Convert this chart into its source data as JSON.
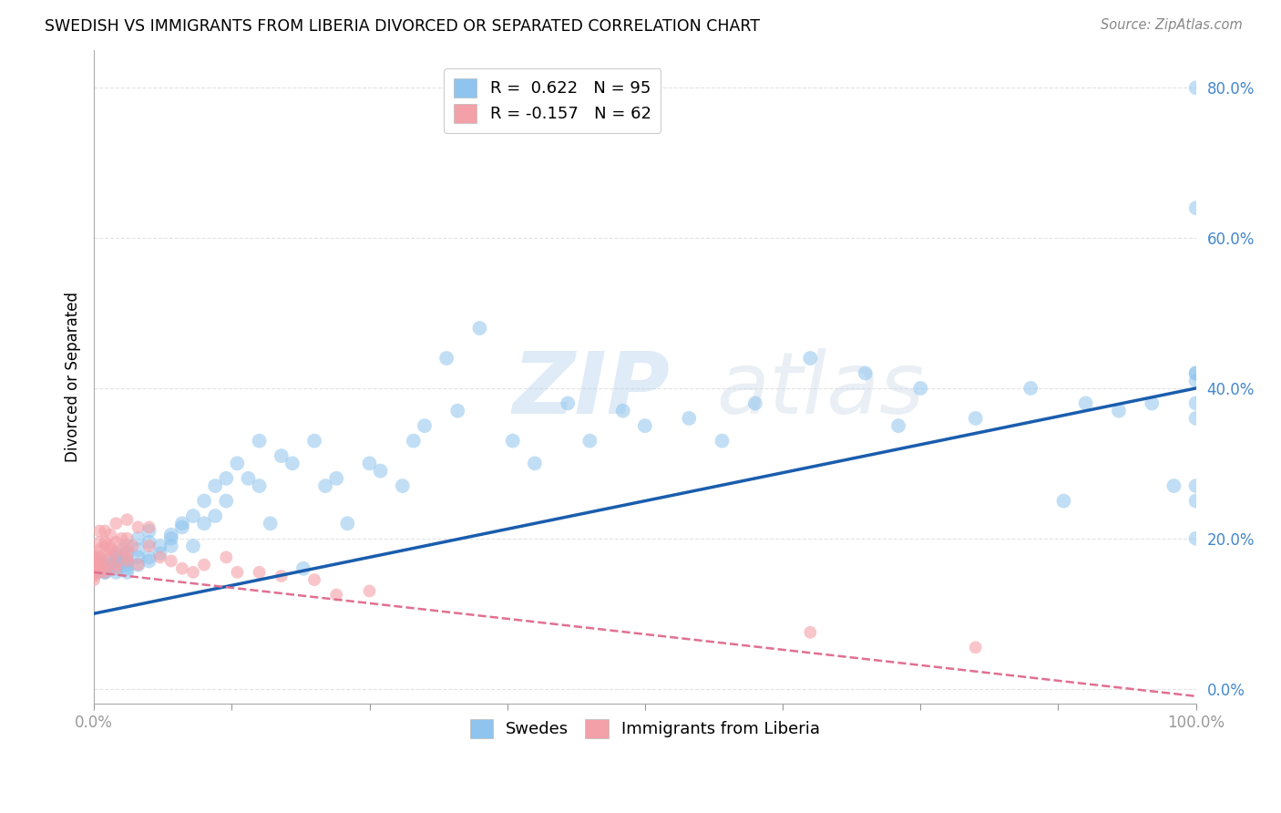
{
  "title": "SWEDISH VS IMMIGRANTS FROM LIBERIA DIVORCED OR SEPARATED CORRELATION CHART",
  "source": "Source: ZipAtlas.com",
  "ylabel": "Divorced or Separated",
  "xlabel_swedes": "Swedes",
  "xlabel_liberia": "Immigrants from Liberia",
  "watermark": "ZIPatlas",
  "swedes_R": 0.622,
  "swedes_N": 95,
  "liberia_R": -0.157,
  "liberia_N": 62,
  "swedes_color": "#8EC4EE",
  "liberia_color": "#F4A0A8",
  "swedes_line_color": "#1A5DAD",
  "liberia_line_color": "#E07090",
  "background_color": "#FFFFFF",
  "grid_color": "#DDDDDD",
  "xlim": [
    0.0,
    1.0
  ],
  "ylim": [
    -0.02,
    0.85
  ],
  "xtick_positions": [
    0.0,
    0.125,
    0.25,
    0.375,
    0.5,
    0.625,
    0.75,
    0.875,
    1.0
  ],
  "xtick_labels_show": {
    "0.0": "0.0%",
    "1.0": "100.0%"
  },
  "yticks": [
    0.0,
    0.2,
    0.4,
    0.6,
    0.8
  ],
  "swedes_line_x0": 0.0,
  "swedes_line_y0": 0.1,
  "swedes_line_x1": 1.0,
  "swedes_line_y1": 0.4,
  "liberia_line_x0": 0.0,
  "liberia_line_y0": 0.155,
  "liberia_line_x1": 1.0,
  "liberia_line_y1": -0.01,
  "swedes_x": [
    0.0,
    0.0,
    0.0,
    0.01,
    0.01,
    0.01,
    0.01,
    0.01,
    0.01,
    0.02,
    0.02,
    0.02,
    0.02,
    0.02,
    0.02,
    0.02,
    0.03,
    0.03,
    0.03,
    0.03,
    0.03,
    0.03,
    0.04,
    0.04,
    0.04,
    0.04,
    0.05,
    0.05,
    0.05,
    0.05,
    0.06,
    0.06,
    0.07,
    0.07,
    0.07,
    0.08,
    0.08,
    0.09,
    0.09,
    0.1,
    0.1,
    0.11,
    0.11,
    0.12,
    0.12,
    0.13,
    0.14,
    0.15,
    0.15,
    0.16,
    0.17,
    0.18,
    0.19,
    0.2,
    0.21,
    0.22,
    0.23,
    0.25,
    0.26,
    0.28,
    0.29,
    0.3,
    0.32,
    0.33,
    0.35,
    0.38,
    0.4,
    0.43,
    0.45,
    0.48,
    0.5,
    0.54,
    0.57,
    0.6,
    0.65,
    0.7,
    0.73,
    0.75,
    0.8,
    0.85,
    0.88,
    0.9,
    0.93,
    0.96,
    0.98,
    1.0,
    1.0,
    1.0,
    1.0,
    1.0,
    1.0,
    1.0,
    1.0,
    1.0,
    1.0
  ],
  "swedes_y": [
    0.155,
    0.16,
    0.155,
    0.155,
    0.16,
    0.16,
    0.155,
    0.165,
    0.17,
    0.155,
    0.16,
    0.17,
    0.165,
    0.17,
    0.175,
    0.18,
    0.16,
    0.165,
    0.17,
    0.18,
    0.19,
    0.155,
    0.165,
    0.175,
    0.185,
    0.2,
    0.17,
    0.175,
    0.195,
    0.21,
    0.18,
    0.19,
    0.19,
    0.2,
    0.205,
    0.215,
    0.22,
    0.19,
    0.23,
    0.22,
    0.25,
    0.23,
    0.27,
    0.25,
    0.28,
    0.3,
    0.28,
    0.27,
    0.33,
    0.22,
    0.31,
    0.3,
    0.16,
    0.33,
    0.27,
    0.28,
    0.22,
    0.3,
    0.29,
    0.27,
    0.33,
    0.35,
    0.44,
    0.37,
    0.48,
    0.33,
    0.3,
    0.38,
    0.33,
    0.37,
    0.35,
    0.36,
    0.33,
    0.38,
    0.44,
    0.42,
    0.35,
    0.4,
    0.36,
    0.4,
    0.25,
    0.38,
    0.37,
    0.38,
    0.27,
    0.41,
    0.36,
    0.42,
    0.2,
    0.64,
    0.25,
    0.38,
    0.27,
    0.42,
    0.8
  ],
  "liberia_x": [
    0.0,
    0.0,
    0.0,
    0.0,
    0.0,
    0.0,
    0.0,
    0.0,
    0.0,
    0.0,
    0.0,
    0.0,
    0.005,
    0.005,
    0.005,
    0.005,
    0.005,
    0.005,
    0.005,
    0.005,
    0.01,
    0.01,
    0.01,
    0.01,
    0.01,
    0.01,
    0.01,
    0.015,
    0.015,
    0.015,
    0.015,
    0.02,
    0.02,
    0.02,
    0.02,
    0.02,
    0.025,
    0.025,
    0.03,
    0.03,
    0.03,
    0.03,
    0.03,
    0.035,
    0.04,
    0.04,
    0.05,
    0.05,
    0.06,
    0.07,
    0.08,
    0.09,
    0.1,
    0.12,
    0.13,
    0.15,
    0.17,
    0.2,
    0.22,
    0.25,
    0.65,
    0.8
  ],
  "liberia_y": [
    0.145,
    0.15,
    0.155,
    0.155,
    0.16,
    0.16,
    0.165,
    0.165,
    0.17,
    0.17,
    0.175,
    0.18,
    0.155,
    0.16,
    0.165,
    0.17,
    0.175,
    0.185,
    0.195,
    0.21,
    0.155,
    0.16,
    0.165,
    0.18,
    0.19,
    0.195,
    0.21,
    0.175,
    0.185,
    0.19,
    0.205,
    0.16,
    0.165,
    0.18,
    0.195,
    0.22,
    0.185,
    0.2,
    0.17,
    0.175,
    0.185,
    0.2,
    0.225,
    0.19,
    0.165,
    0.215,
    0.19,
    0.215,
    0.175,
    0.17,
    0.16,
    0.155,
    0.165,
    0.175,
    0.155,
    0.155,
    0.15,
    0.145,
    0.125,
    0.13,
    0.075,
    0.055
  ]
}
